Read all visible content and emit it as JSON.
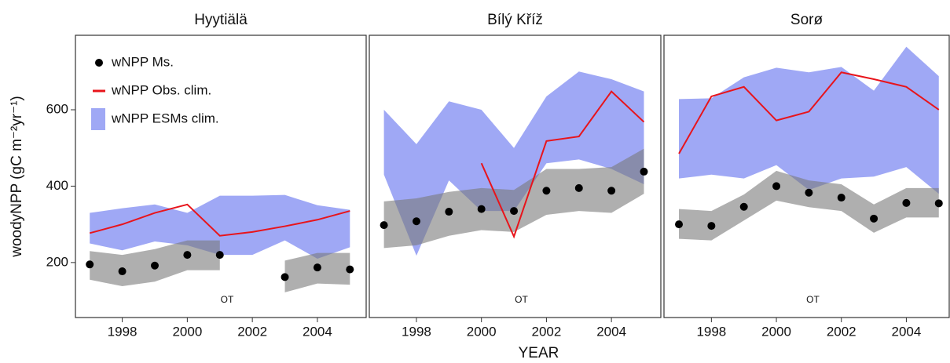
{
  "chart_data": [
    {
      "type": "line",
      "title": "Hyytiälä",
      "ylabel": "woodyNPP (gC m⁻²yr⁻¹)",
      "annotation": "OT",
      "legend": "upper left",
      "x": [
        1997,
        1998,
        1999,
        2000,
        2001,
        2002,
        2003,
        2004,
        2005
      ],
      "xlim": [
        1996.56,
        2005.5
      ],
      "xticks": [
        1998,
        2000,
        2002,
        2004
      ],
      "ylim": [
        56,
        795
      ],
      "yticks": [
        200,
        400,
        600
      ],
      "series": [
        {
          "name": "wNPP Ms.",
          "color": "#000000",
          "kind": "scatter",
          "values": [
            195,
            177,
            192,
            220,
            220,
            null,
            162,
            187,
            182
          ]
        },
        {
          "name": "wNPP Obs. clim.",
          "color": "#e8141b",
          "kind": "line",
          "values": [
            277,
            300,
            330,
            352,
            270,
            280,
            295,
            312,
            335
          ]
        },
        {
          "name": "wNPP ESMs clim.",
          "color": "#8e99f3",
          "kind": "band",
          "lower": [
            250,
            232,
            255,
            245,
            220,
            220,
            258,
            210,
            240
          ],
          "upper": [
            330,
            342,
            352,
            330,
            375,
            375,
            377,
            350,
            338
          ]
        },
        {
          "color": "#7a7a7a",
          "kind": "band",
          "lower": [
            155,
            138,
            150,
            180,
            180,
            null,
            122,
            145,
            142
          ],
          "upper": [
            230,
            220,
            235,
            258,
            258,
            null,
            205,
            225,
            225
          ]
        }
      ]
    },
    {
      "type": "line",
      "title": "Bílý Kříž",
      "xlabel": "YEAR",
      "annotation": "OT",
      "x": [
        1997,
        1998,
        1999,
        2000,
        2001,
        2002,
        2003,
        2004,
        2005
      ],
      "xlim": [
        1996.55,
        2005.52
      ],
      "xticks": [
        1998,
        2000,
        2002,
        2004
      ],
      "ylim": [
        56,
        795
      ],
      "series": [
        {
          "color": "#000000",
          "kind": "scatter",
          "values": [
            298,
            308,
            333,
            340,
            335,
            388,
            395,
            388,
            438
          ]
        },
        {
          "color": "#e8141b",
          "kind": "line",
          "values": [
            null,
            null,
            null,
            460,
            268,
            518,
            530,
            648,
            568
          ]
        },
        {
          "color": "#8e99f3",
          "kind": "band",
          "lower": [
            430,
            218,
            415,
            335,
            335,
            460,
            470,
            445,
            405
          ],
          "upper": [
            600,
            510,
            622,
            600,
            500,
            635,
            700,
            680,
            648
          ]
        },
        {
          "color": "#7a7a7a",
          "kind": "band",
          "lower": [
            238,
            245,
            270,
            285,
            280,
            325,
            335,
            330,
            380
          ],
          "upper": [
            360,
            368,
            385,
            395,
            390,
            445,
            445,
            450,
            498
          ]
        }
      ]
    },
    {
      "type": "line",
      "title": "Sorø",
      "annotation": "OT",
      "x": [
        1997,
        1998,
        1999,
        2000,
        2001,
        2002,
        2003,
        2004,
        2005
      ],
      "xlim": [
        1996.54,
        2005.32
      ],
      "xticks": [
        1998,
        2000,
        2002,
        2004
      ],
      "ylim": [
        56,
        795
      ],
      "series": [
        {
          "color": "#000000",
          "kind": "scatter",
          "values": [
            300,
            296,
            346,
            400,
            383,
            370,
            315,
            356,
            355
          ]
        },
        {
          "color": "#e8141b",
          "kind": "line",
          "values": [
            485,
            635,
            660,
            572,
            595,
            698,
            680,
            660,
            600
          ]
        },
        {
          "color": "#8e99f3",
          "kind": "band",
          "lower": [
            420,
            430,
            420,
            455,
            390,
            420,
            425,
            450,
            380
          ],
          "upper": [
            628,
            630,
            685,
            710,
            698,
            712,
            650,
            765,
            688
          ]
        },
        {
          "color": "#7a7a7a",
          "kind": "band",
          "lower": [
            262,
            258,
            310,
            362,
            345,
            335,
            278,
            318,
            318
          ],
          "upper": [
            340,
            335,
            378,
            440,
            415,
            405,
            352,
            395,
            395
          ]
        }
      ]
    }
  ]
}
